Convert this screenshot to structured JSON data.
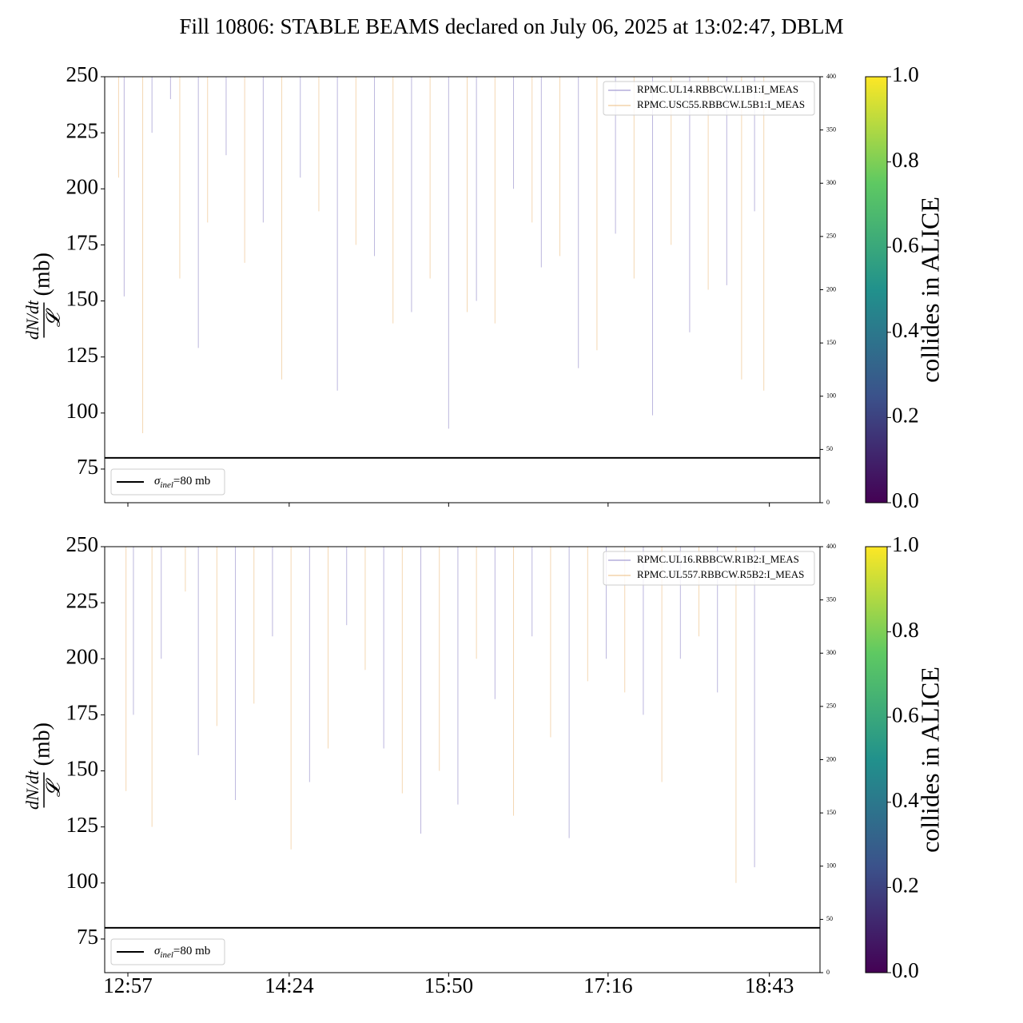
{
  "title": "Fill 10806: STABLE BEAMS declared on July 06, 2025 at 13:02:47, DBLM",
  "chart_data": [
    {
      "type": "spike",
      "ylabel_numerator": "dN/dt",
      "ylabel_denominator": "𝓛",
      "ylabel_unit": "(mb)",
      "xlim": [
        764.5,
        1150.3
      ],
      "xticks": [
        777,
        864,
        950,
        1036,
        1123
      ],
      "ylim": [
        60,
        250
      ],
      "yticks": [
        75,
        100,
        125,
        150,
        175,
        200,
        225,
        250
      ],
      "y2lim": [
        0,
        400
      ],
      "y2ticks": [
        0,
        50,
        100,
        150,
        200,
        250,
        300,
        350,
        400
      ],
      "legend": "upper right",
      "series": [
        {
          "name": "RPMC.UL14.RBBCW.L1B1:I_MEAS",
          "color": "#8f86c8",
          "x": [
            775,
            790,
            800,
            815,
            830,
            850,
            870,
            890,
            910,
            930,
            950,
            965,
            985,
            1000,
            1020,
            1040,
            1060,
            1080,
            1100,
            1115
          ],
          "values": [
            152,
            225,
            240,
            129,
            215,
            185,
            205,
            110,
            170,
            145,
            93,
            150,
            200,
            165,
            120,
            180,
            99,
            136,
            157,
            190
          ]
        },
        {
          "name": "RPMC.USC55.RBBCW.L5B1:I_MEAS",
          "color": "#eebd80",
          "x": [
            772,
            785,
            805,
            820,
            840,
            860,
            880,
            900,
            920,
            940,
            960,
            975,
            995,
            1010,
            1030,
            1050,
            1070,
            1090,
            1108,
            1120
          ],
          "values": [
            205,
            91,
            160,
            185,
            167,
            115,
            190,
            175,
            140,
            160,
            145,
            140,
            185,
            170,
            128,
            160,
            175,
            155,
            115,
            110
          ]
        }
      ],
      "hline": {
        "value": 80,
        "color": "#000000",
        "label_symbol": "σ",
        "label_sub": "inel",
        "label_rest": "=80 mb",
        "legend": "lower left"
      },
      "colorbar": {
        "label": "collides in ALICE",
        "lim": [
          0,
          1
        ],
        "ticks": [
          {
            "value": 0,
            "label": "0.0"
          },
          {
            "value": 0.2,
            "label": "0.2"
          },
          {
            "value": 0.4,
            "label": "0.4"
          },
          {
            "value": 0.6,
            "label": "0.6"
          },
          {
            "value": 0.8,
            "label": "0.8"
          },
          {
            "value": 1,
            "label": "1.0"
          }
        ]
      }
    },
    {
      "type": "spike",
      "ylabel_numerator": "dN/dt",
      "ylabel_denominator": "𝓛",
      "ylabel_unit": "(mb)",
      "xlim": [
        764.5,
        1150.3
      ],
      "xticks": [
        {
          "value": 777,
          "label": "12:57"
        },
        {
          "value": 864,
          "label": "14:24"
        },
        {
          "value": 950,
          "label": "15:50"
        },
        {
          "value": 1036,
          "label": "17:16"
        },
        {
          "value": 1123,
          "label": "18:43"
        }
      ],
      "ylim": [
        60,
        250
      ],
      "yticks": [
        75,
        100,
        125,
        150,
        175,
        200,
        225,
        250
      ],
      "y2lim": [
        0,
        400
      ],
      "y2ticks": [
        0,
        50,
        100,
        150,
        200,
        250,
        300,
        350,
        400
      ],
      "legend": "upper right",
      "series": [
        {
          "name": "RPMC.UL16.RBBCW.R1B2:I_MEAS",
          "color": "#8f86c8",
          "x": [
            780,
            795,
            815,
            835,
            855,
            875,
            895,
            915,
            935,
            955,
            975,
            995,
            1015,
            1035,
            1055,
            1075,
            1095,
            1115
          ],
          "values": [
            175,
            200,
            157,
            137,
            210,
            145,
            215,
            160,
            122,
            135,
            182,
            210,
            120,
            200,
            175,
            200,
            185,
            107
          ]
        },
        {
          "name": "RPMC.UL557.RBBCW.R5B2:I_MEAS",
          "color": "#eebd80",
          "x": [
            776,
            790,
            808,
            825,
            845,
            865,
            885,
            905,
            925,
            945,
            965,
            985,
            1005,
            1025,
            1045,
            1065,
            1085,
            1105
          ],
          "values": [
            141,
            125,
            230,
            170,
            180,
            115,
            160,
            195,
            140,
            150,
            200,
            130,
            165,
            190,
            185,
            145,
            210,
            100
          ]
        }
      ],
      "hline": {
        "value": 80,
        "color": "#000000",
        "label_symbol": "σ",
        "label_sub": "inel",
        "label_rest": "=80 mb",
        "legend": "lower left"
      },
      "colorbar": {
        "label": "collides in ALICE",
        "lim": [
          0,
          1
        ],
        "ticks": [
          {
            "value": 0,
            "label": "0.0"
          },
          {
            "value": 0.2,
            "label": "0.2"
          },
          {
            "value": 0.4,
            "label": "0.4"
          },
          {
            "value": 0.6,
            "label": "0.6"
          },
          {
            "value": 0.8,
            "label": "0.8"
          },
          {
            "value": 1,
            "label": "1.0"
          }
        ]
      }
    }
  ]
}
